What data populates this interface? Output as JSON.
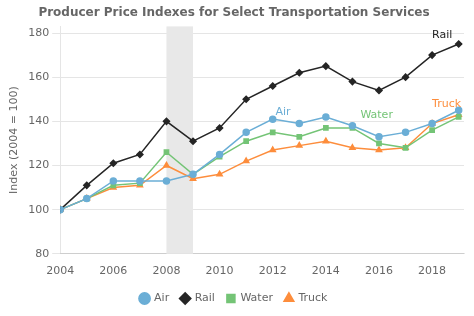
{
  "chart_data": {
    "type": "line",
    "title": "Producer Price Indexes for Select Transportation Services",
    "ylabel": "Index (2004 = 100)",
    "x": [
      2004,
      2005,
      2006,
      2007,
      2008,
      2009,
      2010,
      2011,
      2012,
      2013,
      2014,
      2015,
      2016,
      2017,
      2018,
      2019
    ],
    "series": [
      {
        "name": "Air",
        "color": "#6baed6",
        "marker": "circle",
        "values": [
          100,
          105,
          113,
          113,
          113,
          116,
          125,
          135,
          141,
          139,
          142,
          138,
          133,
          135,
          139,
          145
        ]
      },
      {
        "name": "Rail",
        "color": "#252525",
        "marker": "diamond",
        "values": [
          100,
          111,
          121,
          125,
          140,
          131,
          137,
          150,
          156,
          162,
          165,
          158,
          154,
          160,
          170,
          175
        ]
      },
      {
        "name": "Water",
        "color": "#74c476",
        "marker": "square",
        "values": [
          100,
          105,
          111,
          112,
          126,
          116,
          124,
          131,
          135,
          133,
          137,
          137,
          130,
          128,
          136,
          142
        ]
      },
      {
        "name": "Truck",
        "color": "#fd8d3c",
        "marker": "triangle",
        "values": [
          100,
          105,
          110,
          111,
          120,
          114,
          116,
          122,
          127,
          129,
          131,
          128,
          127,
          128,
          139,
          143
        ]
      }
    ],
    "xlim": [
      2004,
      2019.2
    ],
    "xticks": [
      2004,
      2006,
      2008,
      2010,
      2012,
      2014,
      2016,
      2018
    ],
    "ylim": [
      80,
      183
    ],
    "yticks": [
      80,
      100,
      120,
      140,
      160,
      180
    ],
    "grid": "y",
    "legend": "bottom",
    "shade": {
      "xmin": 2008,
      "xmax": 2009,
      "color": "#e8e8e8"
    },
    "annotations": [
      {
        "text": "Air",
        "x": 2012.1,
        "y": 144,
        "color": "#6baed6"
      },
      {
        "text": "Water",
        "x": 2015.3,
        "y": 143,
        "color": "#74c476"
      },
      {
        "text": "Truck",
        "x": 2018.0,
        "y": 148,
        "color": "#fd8d3c"
      },
      {
        "text": "Rail",
        "x": 2018.0,
        "y": 179,
        "color": "#252525"
      }
    ]
  }
}
